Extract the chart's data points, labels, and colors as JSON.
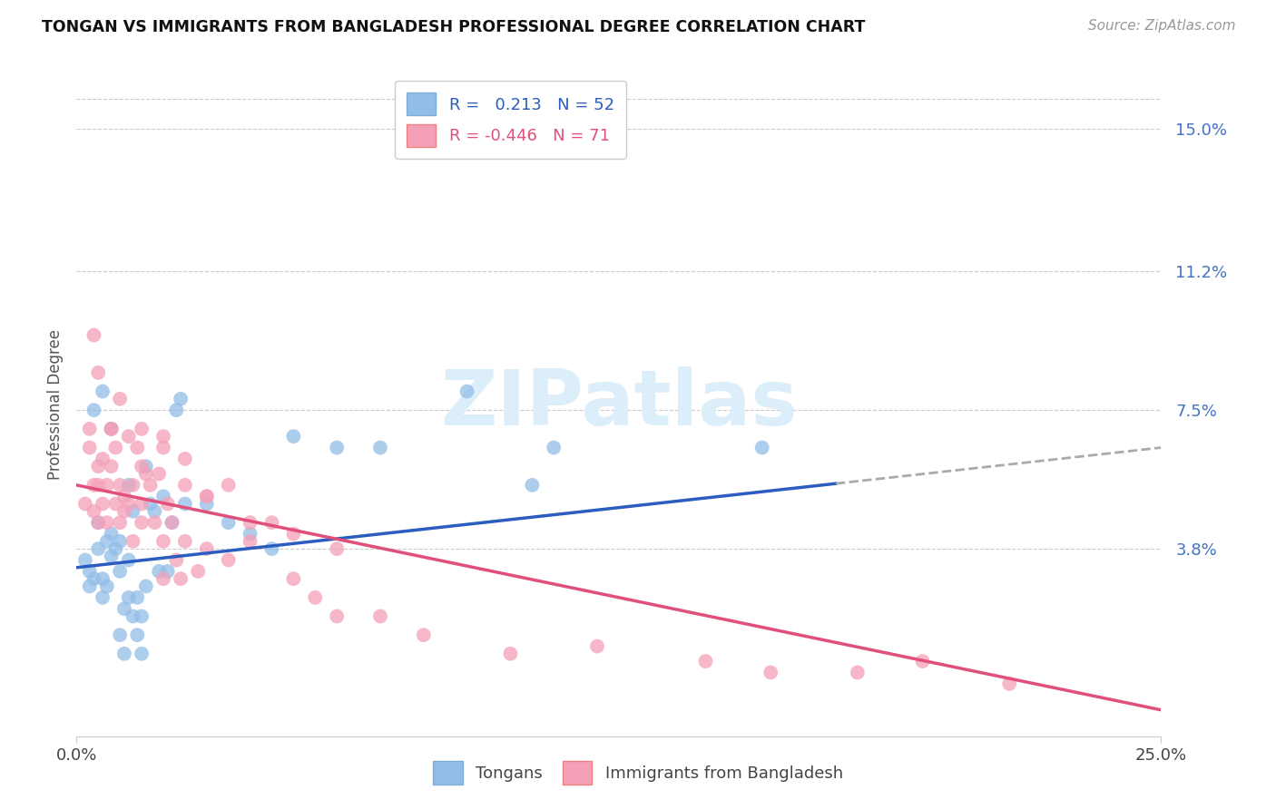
{
  "title": "TONGAN VS IMMIGRANTS FROM BANGLADESH PROFESSIONAL DEGREE CORRELATION CHART",
  "source": "Source: ZipAtlas.com",
  "ylabel": "Professional Degree",
  "ytick_labels": [
    "3.8%",
    "7.5%",
    "11.2%",
    "15.0%"
  ],
  "ytick_values": [
    3.8,
    7.5,
    11.2,
    15.0
  ],
  "xmin": 0.0,
  "xmax": 25.0,
  "ymin": -1.2,
  "ymax": 16.5,
  "R_tongan": 0.213,
  "N_tongan": 52,
  "R_bangladesh": -0.446,
  "N_bangladesh": 71,
  "color_tongan": "#92bde8",
  "color_bangladesh": "#f4a0b8",
  "line_color_tongan": "#2a5dbf",
  "line_color_bangladesh": "#e0507a",
  "line_color_dashed": "#aaaaaa",
  "background_color": "#ffffff",
  "watermark_text": "ZIPatlas",
  "watermark_color": "#dceefa",
  "legend1_r": "0.213",
  "legend1_n": "52",
  "legend2_r": "-0.446",
  "legend2_n": "71",
  "tongan_x": [
    0.2,
    0.3,
    0.3,
    0.4,
    0.5,
    0.5,
    0.6,
    0.6,
    0.7,
    0.7,
    0.8,
    0.8,
    0.9,
    1.0,
    1.0,
    1.0,
    1.1,
    1.1,
    1.2,
    1.2,
    1.3,
    1.3,
    1.4,
    1.4,
    1.5,
    1.5,
    1.6,
    1.7,
    1.8,
    1.9,
    2.0,
    2.1,
    2.2,
    2.3,
    2.4,
    2.5,
    3.0,
    3.5,
    4.0,
    4.5,
    5.0,
    6.0,
    7.0,
    9.0,
    10.5,
    11.0,
    15.8,
    0.4,
    0.6,
    0.8,
    1.2,
    1.6
  ],
  "tongan_y": [
    3.5,
    3.2,
    2.8,
    3.0,
    3.8,
    4.5,
    2.5,
    3.0,
    2.8,
    4.0,
    3.6,
    4.2,
    3.8,
    3.2,
    4.0,
    1.5,
    2.2,
    1.0,
    2.5,
    3.5,
    2.0,
    4.8,
    2.5,
    1.5,
    2.0,
    1.0,
    2.8,
    5.0,
    4.8,
    3.2,
    5.2,
    3.2,
    4.5,
    7.5,
    7.8,
    5.0,
    5.0,
    4.5,
    4.2,
    3.8,
    6.8,
    6.5,
    6.5,
    8.0,
    5.5,
    6.5,
    6.5,
    7.5,
    8.0,
    7.0,
    5.5,
    6.0
  ],
  "bangladesh_x": [
    0.2,
    0.3,
    0.3,
    0.4,
    0.4,
    0.5,
    0.5,
    0.5,
    0.6,
    0.6,
    0.7,
    0.7,
    0.8,
    0.8,
    0.9,
    0.9,
    1.0,
    1.0,
    1.1,
    1.1,
    1.2,
    1.2,
    1.3,
    1.3,
    1.4,
    1.5,
    1.5,
    1.6,
    1.7,
    1.8,
    1.9,
    2.0,
    2.0,
    2.1,
    2.2,
    2.3,
    2.4,
    2.5,
    2.5,
    2.8,
    3.0,
    3.5,
    3.5,
    4.0,
    4.5,
    5.0,
    5.5,
    6.0,
    7.0,
    8.0,
    10.0,
    12.0,
    14.5,
    16.0,
    18.0,
    19.5,
    21.5,
    0.5,
    1.0,
    1.5,
    2.0,
    2.5,
    3.0,
    4.0,
    5.0,
    6.0,
    0.4,
    0.8,
    1.5,
    2.0,
    3.0
  ],
  "bangladesh_y": [
    5.0,
    6.5,
    7.0,
    5.5,
    4.8,
    6.0,
    5.5,
    4.5,
    5.0,
    6.2,
    5.5,
    4.5,
    6.0,
    7.0,
    6.5,
    5.0,
    4.5,
    5.5,
    5.2,
    4.8,
    5.0,
    6.8,
    5.5,
    4.0,
    6.5,
    4.5,
    5.0,
    5.8,
    5.5,
    4.5,
    5.8,
    4.0,
    3.0,
    5.0,
    4.5,
    3.5,
    3.0,
    4.0,
    5.5,
    3.2,
    3.8,
    3.5,
    5.5,
    4.0,
    4.5,
    3.0,
    2.5,
    2.0,
    2.0,
    1.5,
    1.0,
    1.2,
    0.8,
    0.5,
    0.5,
    0.8,
    0.2,
    8.5,
    7.8,
    7.0,
    6.8,
    6.2,
    5.2,
    4.5,
    4.2,
    3.8,
    9.5,
    7.0,
    6.0,
    6.5,
    5.2
  ],
  "tongan_line_x0": 0.0,
  "tongan_line_y0": 3.3,
  "tongan_line_x1": 25.0,
  "tongan_line_y1": 6.5,
  "bangladesh_line_x0": 0.0,
  "bangladesh_line_y0": 5.5,
  "bangladesh_line_x1": 25.0,
  "bangladesh_line_y1": -0.5,
  "dashed_start_x": 17.5
}
